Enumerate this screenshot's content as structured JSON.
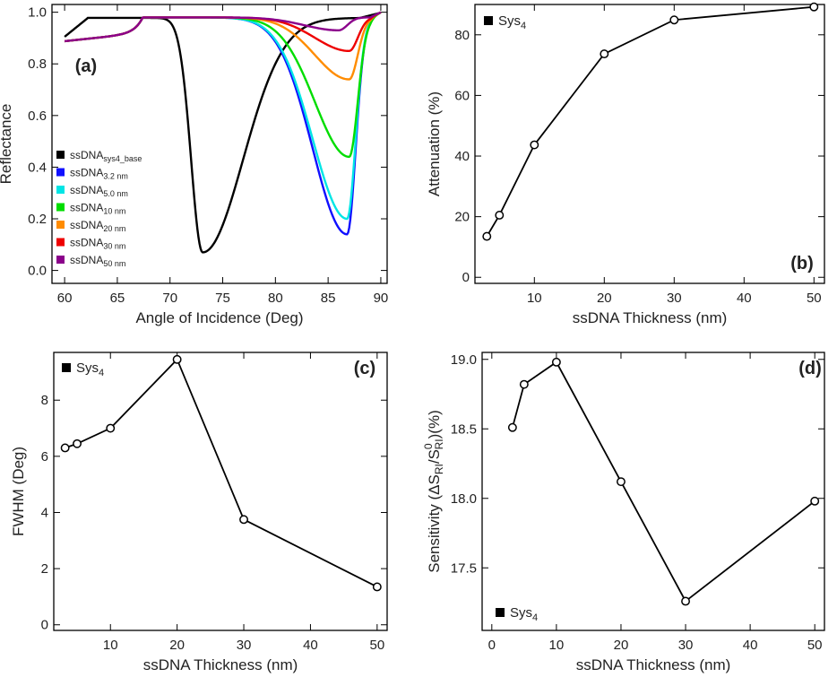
{
  "chart_data": [
    {
      "id": "a",
      "type": "line",
      "panel_label": "(a)",
      "xlabel": "Angle of Incidence (Deg)",
      "ylabel": "Reflectance",
      "xlim": [
        58.8,
        90.6
      ],
      "ylim": [
        -0.05,
        1.03
      ],
      "xticks": [
        "60",
        "65",
        "70",
        "75",
        "80",
        "85",
        "90"
      ],
      "yticks": [
        "0.0",
        "0.2",
        "0.4",
        "0.6",
        "0.8",
        "1.0"
      ],
      "legend_position": "left",
      "series": [
        {
          "name": "ssDNA",
          "sub": "sys4_base",
          "color": "#000000",
          "resonance_angle": 73.1,
          "min_reflectance": 0.07,
          "plateau": 0.98
        },
        {
          "name": "ssDNA",
          "sub": "3.2 nm",
          "color": "#1010ff",
          "resonance_angle": 86.8,
          "min_reflectance": 0.14,
          "plateau": 0.98
        },
        {
          "name": "ssDNA",
          "sub": "5.0 nm",
          "color": "#00e5e5",
          "resonance_angle": 86.8,
          "min_reflectance": 0.2,
          "plateau": 0.98
        },
        {
          "name": "ssDNA",
          "sub": "10 nm",
          "color": "#00dd00",
          "resonance_angle": 87.0,
          "min_reflectance": 0.44,
          "plateau": 0.98
        },
        {
          "name": "ssDNA",
          "sub": "20 nm",
          "color": "#ff8c00",
          "resonance_angle": 87.0,
          "min_reflectance": 0.74,
          "plateau": 0.98
        },
        {
          "name": "ssDNA",
          "sub": "30 nm",
          "color": "#ee0000",
          "resonance_angle": 87.0,
          "min_reflectance": 0.85,
          "plateau": 0.98
        },
        {
          "name": "ssDNA",
          "sub": "50 nm",
          "color": "#8b008b",
          "resonance_angle": 86.0,
          "min_reflectance": 0.93,
          "plateau": 0.98
        }
      ]
    },
    {
      "id": "b",
      "type": "line",
      "panel_label": "(b)",
      "legend": {
        "name": "Sys",
        "sub": "4"
      },
      "xlabel": "ssDNA Thickness (nm)",
      "ylabel": "Attenuation (%)",
      "xlim": [
        1.5,
        51.5
      ],
      "ylim": [
        -2,
        90
      ],
      "xticks": [
        "10",
        "20",
        "30",
        "40",
        "50"
      ],
      "yticks": [
        "0",
        "20",
        "40",
        "60",
        "80"
      ],
      "x": [
        3.2,
        5,
        10,
        20,
        30,
        50
      ],
      "y": [
        13.5,
        20.5,
        43.7,
        73.7,
        84.9,
        89.2
      ]
    },
    {
      "id": "c",
      "type": "line",
      "panel_label": "(c)",
      "legend": {
        "name": "Sys",
        "sub": "4"
      },
      "xlabel": "ssDNA Thickness (nm)",
      "ylabel": "FWHM (Deg)",
      "xlim": [
        1.5,
        51.5
      ],
      "ylim": [
        -0.2,
        9.7
      ],
      "xticks": [
        "10",
        "20",
        "30",
        "40",
        "50"
      ],
      "yticks": [
        "0",
        "2",
        "4",
        "6",
        "8"
      ],
      "x": [
        3.2,
        5,
        10,
        20,
        30,
        50
      ],
      "y": [
        6.3,
        6.45,
        7.0,
        9.45,
        3.75,
        1.35
      ]
    },
    {
      "id": "d",
      "type": "line",
      "panel_label": "(d)",
      "legend": {
        "name": "Sys",
        "sub": "4"
      },
      "xlabel": "ssDNA Thickness (nm)",
      "ylabel": "Sensitivity (ΔS / S ) (%)",
      "ylabel_parts": {
        "pre": "Sensitivity (ΔS",
        "sub1": "RI",
        "mid": "/S",
        "sup": "0",
        "sub2": "RI",
        "post": ")(%)"
      },
      "xlim": [
        -1.5,
        51.5
      ],
      "ylim": [
        17.05,
        19.05
      ],
      "xticks": [
        "0",
        "10",
        "20",
        "30",
        "40",
        "50"
      ],
      "yticks": [
        "17.5",
        "18.0",
        "18.5",
        "19.0"
      ],
      "x": [
        3.2,
        5,
        10,
        20,
        30,
        50
      ],
      "y": [
        18.51,
        18.82,
        18.98,
        18.12,
        17.26,
        17.98
      ]
    }
  ]
}
